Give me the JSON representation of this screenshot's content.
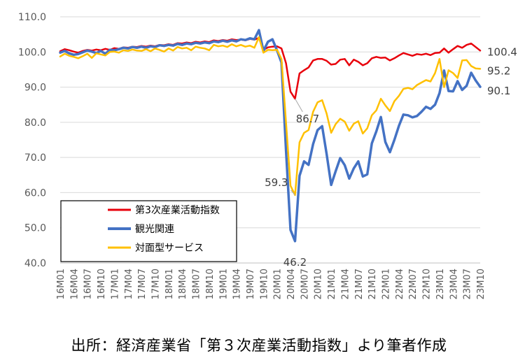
{
  "chart_data": {
    "type": "line",
    "ylim": [
      40,
      110
    ],
    "yticks": [
      "40.0",
      "50.0",
      "60.0",
      "70.0",
      "80.0",
      "90.0",
      "100.0",
      "110.0"
    ],
    "x": [
      "16M01",
      "16M02",
      "16M03",
      "16M04",
      "16M05",
      "16M06",
      "16M07",
      "16M08",
      "16M09",
      "16M10",
      "16M11",
      "16M12",
      "17M01",
      "17M02",
      "17M03",
      "17M04",
      "17M05",
      "17M06",
      "17M07",
      "17M08",
      "17M09",
      "17M10",
      "17M11",
      "17M12",
      "18M01",
      "18M02",
      "18M03",
      "18M04",
      "18M05",
      "18M06",
      "18M07",
      "18M08",
      "18M09",
      "18M10",
      "18M11",
      "18M12",
      "19M01",
      "19M02",
      "19M03",
      "19M04",
      "19M05",
      "19M06",
      "19M07",
      "19M08",
      "19M09",
      "19M10",
      "19M11",
      "19M12",
      "20M01",
      "20M02",
      "20M03",
      "20M04",
      "20M05",
      "20M06",
      "20M07",
      "20M08",
      "20M09",
      "20M10",
      "20M11",
      "20M12",
      "21M01",
      "21M02",
      "21M03",
      "21M04",
      "21M05",
      "21M06",
      "21M07",
      "21M08",
      "21M09",
      "21M10",
      "21M11",
      "21M12",
      "22M01",
      "22M02",
      "22M03",
      "22M04",
      "22M05",
      "22M06",
      "22M07",
      "22M08",
      "22M09",
      "22M10",
      "22M11",
      "22M12",
      "23M01",
      "23M02",
      "23M03",
      "23M04",
      "23M05",
      "23M06",
      "23M07",
      "23M08",
      "23M09",
      "23M10"
    ],
    "xtick_labels": [
      "16M01",
      "16M04",
      "16M07",
      "16M10",
      "17M01",
      "17M04",
      "17M07",
      "17M10",
      "18M01",
      "18M04",
      "18M07",
      "18M10",
      "19M01",
      "19M04",
      "19M07",
      "19M10",
      "20M01",
      "20M04",
      "20M07",
      "20M10",
      "21M01",
      "21M04",
      "21M07",
      "21M10",
      "22M01",
      "22M04",
      "22M07",
      "22M10",
      "23M01",
      "23M04",
      "23M07",
      "23M10"
    ],
    "series": [
      {
        "name": "第3次産業活動指数",
        "color": "#e8000b",
        "values": [
          100.2,
          100.8,
          100.5,
          100.1,
          99.8,
          100.3,
          100.6,
          100.4,
          100.7,
          100.5,
          100.9,
          100.6,
          101.1,
          100.9,
          101.3,
          101.2,
          101.5,
          101.4,
          101.7,
          101.5,
          101.8,
          101.6,
          102.0,
          101.9,
          102.2,
          102.0,
          102.5,
          102.4,
          102.7,
          102.5,
          102.9,
          102.7,
          103.0,
          102.8,
          103.3,
          103.1,
          103.4,
          103.2,
          103.6,
          103.4,
          103.5,
          103.3,
          103.7,
          103.5,
          104.0,
          100.6,
          101.3,
          101.5,
          101.6,
          101.0,
          96.8,
          88.7,
          86.7,
          93.9,
          94.8,
          95.6,
          97.6,
          98.0,
          98.0,
          97.5,
          96.4,
          96.6,
          97.8,
          98.0,
          96.2,
          97.8,
          97.2,
          96.2,
          96.8,
          98.2,
          98.6,
          98.3,
          98.4,
          97.6,
          98.2,
          99.0,
          99.7,
          99.3,
          98.9,
          99.4,
          99.2,
          99.5,
          99.1,
          99.7,
          99.8,
          101.0,
          99.8,
          100.8,
          101.7,
          101.2,
          102.0,
          102.4,
          101.4,
          100.4
        ]
      },
      {
        "name": "観光関連",
        "color": "#4472c4",
        "values": [
          99.8,
          100.3,
          99.6,
          99.2,
          99.4,
          99.9,
          100.4,
          100.1,
          99.7,
          100.3,
          99.5,
          100.6,
          100.5,
          100.8,
          101.2,
          101.0,
          101.4,
          101.2,
          101.5,
          101.2,
          101.6,
          101.4,
          101.9,
          101.7,
          102.0,
          101.8,
          102.3,
          102.0,
          102.4,
          102.2,
          102.6,
          102.4,
          102.7,
          102.5,
          103.0,
          102.8,
          103.2,
          102.9,
          103.3,
          103.0,
          103.6,
          103.4,
          103.9,
          103.6,
          106.2,
          100.3,
          102.9,
          103.6,
          100.5,
          97.0,
          72.0,
          49.4,
          46.2,
          64.8,
          68.9,
          67.9,
          73.8,
          77.8,
          78.9,
          71.0,
          62.2,
          66.1,
          69.8,
          67.8,
          64.0,
          66.9,
          68.9,
          64.6,
          65.2,
          74.0,
          77.4,
          81.5,
          74.4,
          71.5,
          75.0,
          79.0,
          82.2,
          82.0,
          81.4,
          81.8,
          83.0,
          84.4,
          83.8,
          85.0,
          88.3,
          94.7,
          88.9,
          88.8,
          91.7,
          89.2,
          90.4,
          94.1,
          91.9,
          90.1
        ]
      },
      {
        "name": "対面型サービス",
        "color": "#ffc000",
        "values": [
          98.7,
          99.5,
          98.9,
          98.6,
          98.2,
          98.8,
          99.5,
          98.3,
          99.6,
          99.3,
          99.0,
          100.0,
          100.1,
          99.8,
          100.5,
          100.3,
          100.7,
          100.4,
          100.3,
          100.8,
          100.2,
          101.0,
          100.6,
          100.1,
          101.0,
          100.4,
          101.4,
          101.0,
          101.2,
          100.5,
          101.5,
          101.2,
          101.0,
          100.5,
          102.0,
          101.6,
          101.8,
          101.4,
          102.2,
          101.6,
          102.0,
          101.5,
          101.8,
          101.2,
          104.2,
          99.8,
          100.6,
          100.5,
          100.6,
          98.0,
          80.0,
          62.0,
          59.3,
          74.3,
          77.0,
          77.8,
          83.0,
          85.7,
          86.3,
          82.5,
          77.0,
          79.5,
          81.0,
          80.2,
          77.6,
          79.6,
          80.3,
          76.8,
          78.3,
          82.0,
          83.4,
          86.7,
          84.8,
          83.2,
          86.0,
          87.5,
          89.5,
          89.8,
          89.4,
          90.6,
          91.3,
          92.0,
          91.6,
          94.0,
          98.0,
          90.0,
          94.8,
          94.0,
          92.6,
          97.6,
          97.7,
          96.0,
          95.3,
          95.2
        ]
      }
    ],
    "annotations": [
      {
        "text": "100.4",
        "series": 0,
        "index": 93
      },
      {
        "text": "95.2",
        "series": 2,
        "index": 93
      },
      {
        "text": "90.1",
        "series": 1,
        "index": 93
      },
      {
        "text": "86.7",
        "series": 0,
        "index": 52
      },
      {
        "text": "59.3",
        "series": 2,
        "index": 52
      },
      {
        "text": "46.2",
        "series": 1,
        "index": 52
      }
    ],
    "legend_position": "bottom-left"
  },
  "source_text": "出所：経済産業省「第３次産業活動指数」より筆者作成"
}
